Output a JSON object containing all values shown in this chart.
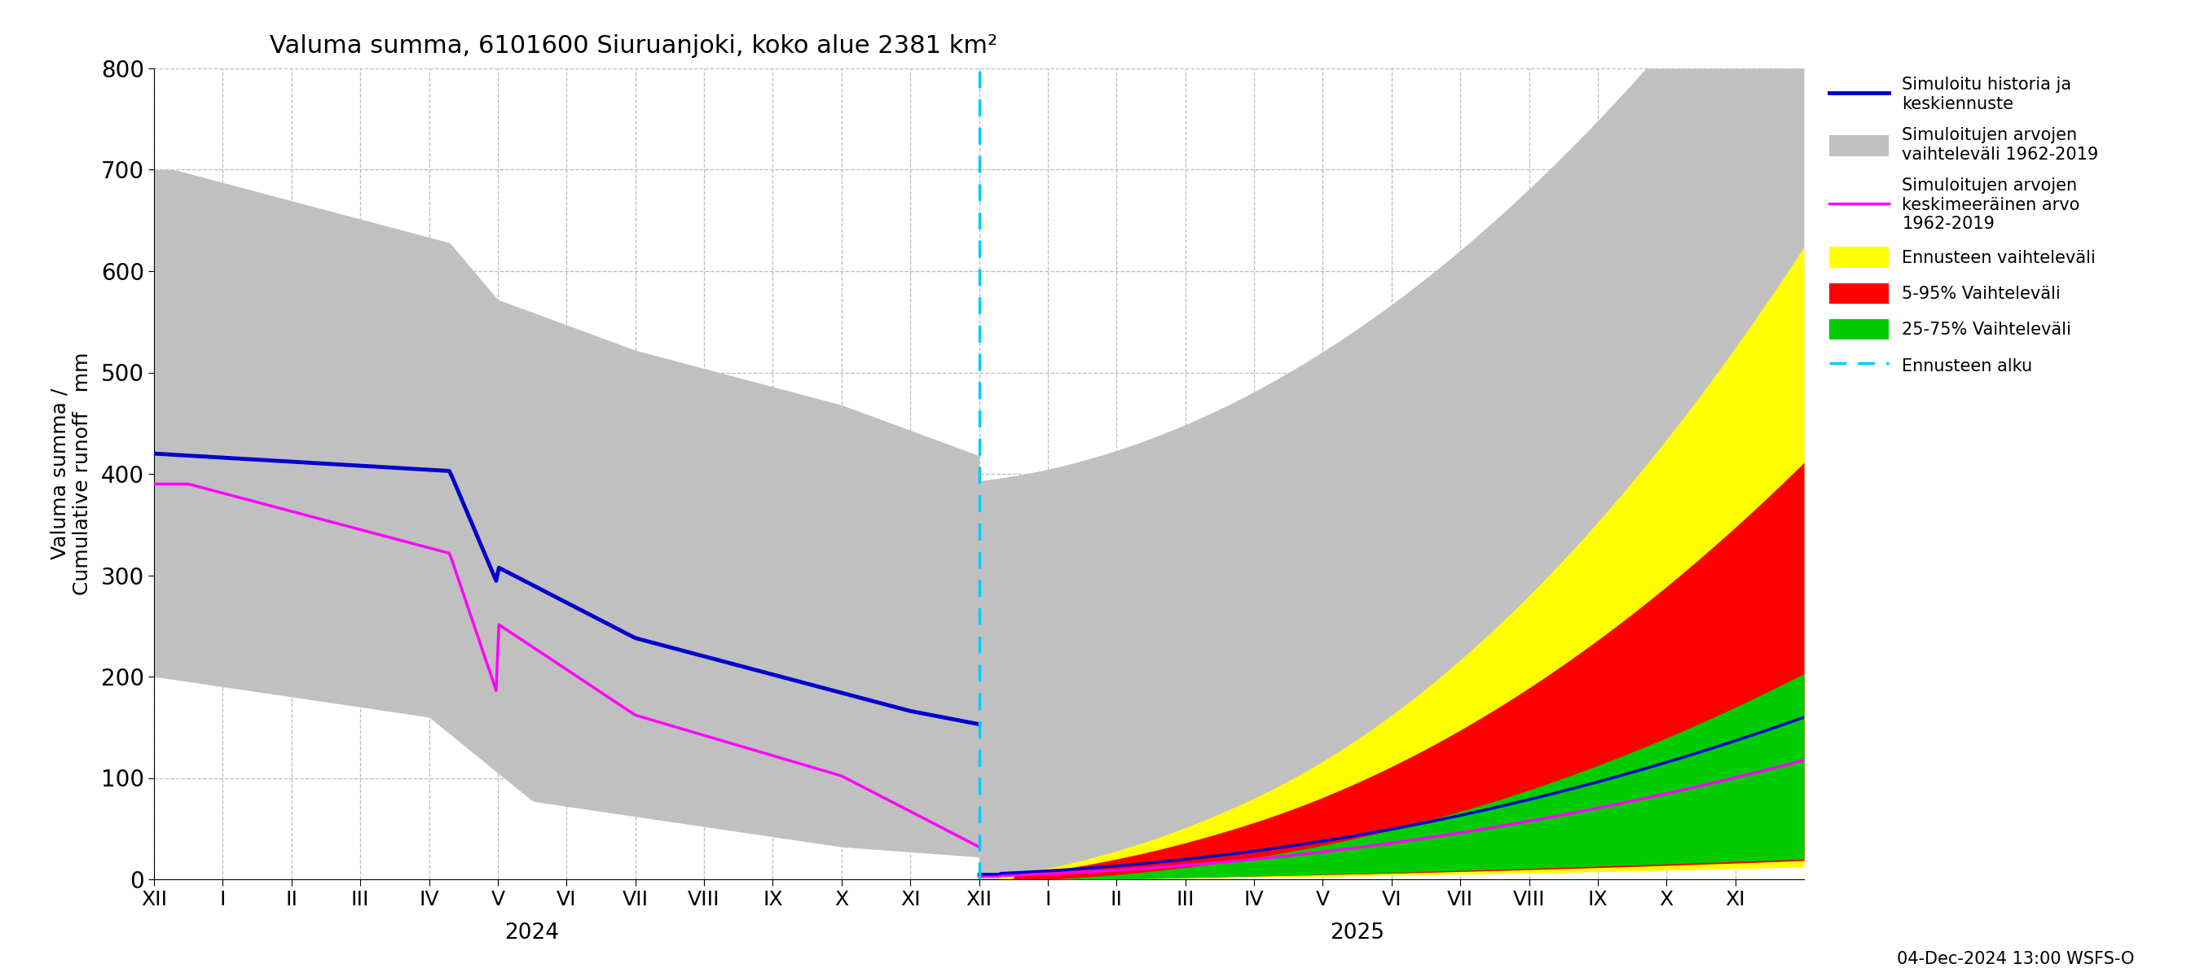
{
  "title": "Valuma summa, 6101600 Siuruanjoki, koko alue 2381 km²",
  "ylabel": "Valuma summa / Cumulative runoff   mm",
  "ylim": [
    0,
    800
  ],
  "yticks": [
    0,
    100,
    200,
    300,
    400,
    500,
    600,
    700,
    800
  ],
  "footnote": "04-Dec-2024 13:00 WSFS-O",
  "month_labels": [
    "XII",
    "I",
    "II",
    "III",
    "IV",
    "V",
    "VI",
    "VII",
    "VIII",
    "IX",
    "X",
    "XI",
    "XII",
    "I",
    "II",
    "III",
    "IV",
    "V",
    "VI",
    "VII",
    "VIII",
    "IX",
    "X",
    "XI"
  ],
  "year_2024": "2024",
  "year_2025": "2025",
  "vline_color": "#00ccff",
  "color_blue": "#0000cc",
  "color_gray": "#c0c0c0",
  "color_magenta": "#ff00ff",
  "color_yellow": "#ffff00",
  "color_red": "#ff0000",
  "color_green": "#00cc00",
  "color_cyan": "#00ccff",
  "background": "#ffffff",
  "grid_color": "#aaaaaa",
  "legend_0": "Simuloitu historia ja\nkeskiennuste",
  "legend_1": "Simuloitujen arvojen\nvaihteleväli 1962-2019",
  "legend_2": "Simuloitujen arvojen\nkeskimeeräinen arvo\n1962-2019",
  "legend_3": "Ennusteen vaihteleväli",
  "legend_4": "5-95% Vaihteleväli",
  "legend_5": "25-75% Vaihteleväli",
  "legend_6": "Ennusteen alku"
}
